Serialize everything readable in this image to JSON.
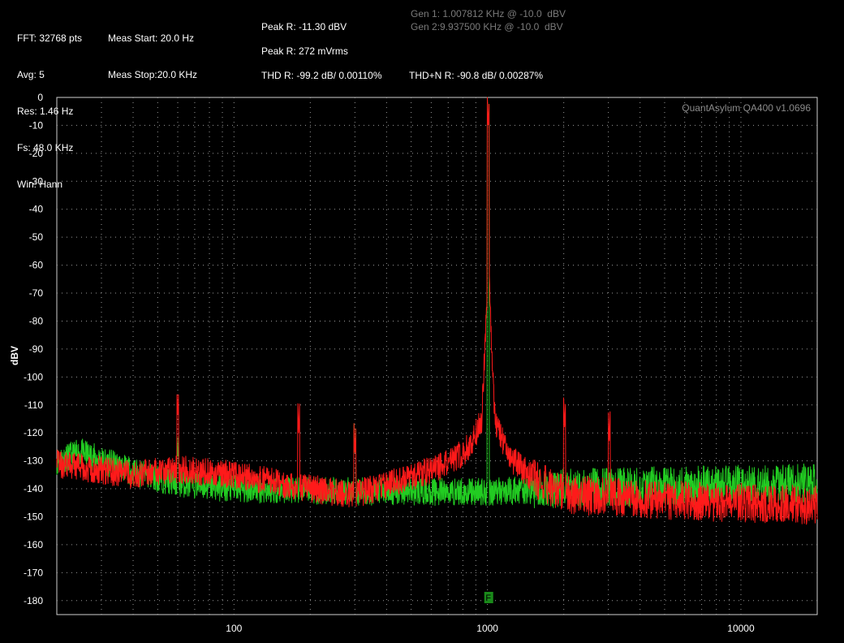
{
  "header": {
    "col1": [
      "FFT: 32768 pts",
      "Avg: 5",
      "Res: 1.46 Hz",
      "Fs: 48.0 KHz",
      "Win: Hann"
    ],
    "col2": [
      "Meas Start: 20.0 Hz",
      "Meas Stop:20.0 KHz"
    ],
    "peak_db": "Peak R: -11.30 dBV",
    "peak_rms": "Peak R: 272 mVrms",
    "thd": "THD R: -99.2 dB/ 0.00110%",
    "thdn": "THD+N R: -90.8 dB/ 0.00287%",
    "gen1": "Gen 1: 1.007812 KHz @ -10.0  dBV",
    "gen2": "Gen 2:9.937500 KHz @ -10.0  dBV"
  },
  "chart_data": {
    "type": "line",
    "title": "QuantAsylum QA400 v1.0696",
    "ylabel": "dBV",
    "xlabel": "",
    "x_scale": "log",
    "xlim": [
      20,
      20000
    ],
    "ylim": [
      -185,
      0
    ],
    "grid": true,
    "yticks": [
      0,
      -10,
      -20,
      -30,
      -40,
      -50,
      -60,
      -70,
      -80,
      -90,
      -100,
      -110,
      -120,
      -130,
      -140,
      -150,
      -160,
      -170,
      -180
    ],
    "xtick_labels": [
      "100",
      "1000",
      "10000"
    ],
    "xticks": [
      100,
      1000,
      10000
    ],
    "marker": {
      "label": "F",
      "x": 1008,
      "color": "#1a8a1a"
    },
    "series": [
      {
        "color": "#ff1a1a",
        "peaks": [
          [
            60,
            -115
          ],
          [
            180,
            -120
          ],
          [
            300,
            -128
          ],
          [
            1008,
            -11.3
          ],
          [
            2016,
            -119
          ],
          [
            3024,
            -123
          ]
        ],
        "envelope": [
          [
            20,
            -131
          ],
          [
            40,
            -135
          ],
          [
            60,
            -133
          ],
          [
            100,
            -135
          ],
          [
            200,
            -140
          ],
          [
            300,
            -142
          ],
          [
            500,
            -136
          ],
          [
            700,
            -131
          ],
          [
            850,
            -125
          ],
          [
            950,
            -115
          ],
          [
            1008,
            -60
          ],
          [
            1070,
            -115
          ],
          [
            1200,
            -128
          ],
          [
            1500,
            -136
          ],
          [
            2000,
            -142
          ],
          [
            5000,
            -144
          ],
          [
            20000,
            -146
          ]
        ]
      },
      {
        "color": "#22cc22",
        "peaks": [
          [
            60,
            -130
          ],
          [
            300,
            -128
          ],
          [
            1008,
            -11.3
          ]
        ],
        "envelope": [
          [
            20,
            -130
          ],
          [
            25,
            -127
          ],
          [
            40,
            -134
          ],
          [
            60,
            -138
          ],
          [
            100,
            -140
          ],
          [
            300,
            -141
          ],
          [
            600,
            -141
          ],
          [
            1000,
            -141
          ],
          [
            2000,
            -140
          ],
          [
            5000,
            -139
          ],
          [
            20000,
            -138
          ]
        ]
      }
    ]
  }
}
